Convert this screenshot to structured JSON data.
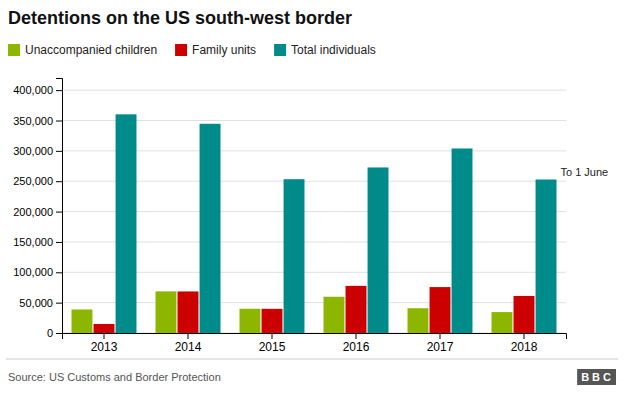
{
  "chart_data": {
    "type": "bar",
    "title": "Detentions on the US south-west border",
    "categories": [
      "2013",
      "2014",
      "2015",
      "2016",
      "2017",
      "2018"
    ],
    "series": [
      {
        "name": "Unaccompanied children",
        "color": "#8db600",
        "values": [
          38759,
          68541,
          39970,
          59692,
          40810,
          34461
        ]
      },
      {
        "name": "Family units",
        "color": "#cc0000",
        "values": [
          14855,
          68445,
          39838,
          77674,
          75622,
          61019
        ]
      },
      {
        "name": "Total individuals",
        "color": "#008b8b",
        "values": [
          360168,
          344579,
          253333,
          272680,
          303916,
          252830
        ]
      }
    ],
    "ylim": [
      0,
      420000
    ],
    "yticks": [
      0,
      {
        "value": 50000,
        "label": "50,000"
      },
      {
        "value": 100000,
        "label": "100,000"
      },
      {
        "value": 150000,
        "label": "150,000"
      },
      {
        "value": 200000,
        "label": "200,000"
      },
      {
        "value": 250000,
        "label": "250,000"
      },
      {
        "value": 300000,
        "label": "300,000"
      },
      {
        "value": 350000,
        "label": "350,000"
      },
      {
        "value": 400000,
        "label": "400,000"
      }
    ],
    "grid": true,
    "legend": "top-left",
    "annotations": [
      {
        "text": "To 1 June",
        "x": "2018",
        "series": "Total individuals"
      }
    ],
    "source": "Source: US Customs and Border Protection",
    "logo": "BBC"
  }
}
